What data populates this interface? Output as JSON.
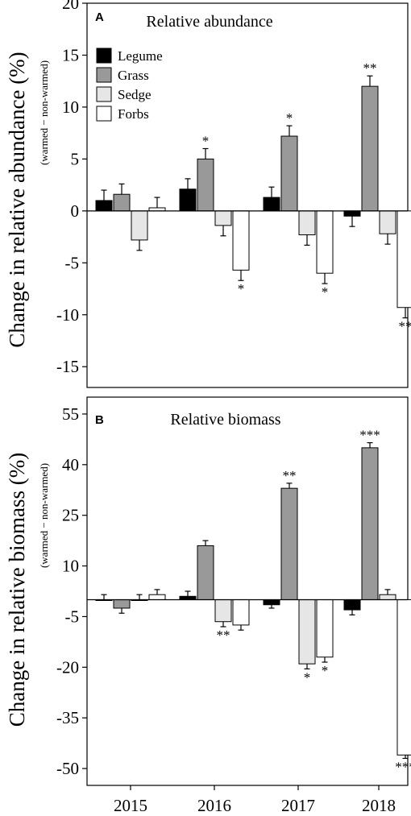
{
  "chart_data": [
    {
      "type": "bar",
      "panel_letter": "A",
      "title": "Relative abundance",
      "ylabel": "Change in relative abundance (%)",
      "ylabel_sub": "(warmed − non-warmed)",
      "xlabel": "",
      "categories": [
        "2015",
        "2016",
        "2017",
        "2018"
      ],
      "ylim": [
        -17,
        20
      ],
      "yticks": [
        20,
        15,
        10,
        5,
        0,
        -5,
        -10,
        -15
      ],
      "legend": "top-left",
      "grid": false,
      "series": [
        {
          "name": "Legume",
          "color": "#000000",
          "values": [
            1.0,
            2.1,
            1.3,
            -0.5
          ],
          "errors": [
            1.0,
            1.0,
            1.0,
            1.0
          ],
          "sig": [
            "",
            "",
            "",
            ""
          ]
        },
        {
          "name": "Grass",
          "color": "#999999",
          "values": [
            1.6,
            5.0,
            7.2,
            12.0
          ],
          "errors": [
            1.0,
            1.0,
            1.0,
            1.0
          ],
          "sig": [
            "",
            "*",
            "*",
            "**"
          ]
        },
        {
          "name": "Sedge",
          "color": "#e6e6e6",
          "values": [
            -2.8,
            -1.4,
            -2.3,
            -2.2
          ],
          "errors": [
            1.0,
            1.0,
            1.0,
            1.0
          ],
          "sig": [
            "",
            "",
            "",
            ""
          ]
        },
        {
          "name": "Forbs",
          "color": "#ffffff",
          "values": [
            0.3,
            -5.7,
            -6.0,
            -9.3
          ],
          "errors": [
            1.0,
            1.0,
            1.0,
            1.0
          ],
          "sig": [
            "",
            "*",
            "*",
            "**"
          ]
        }
      ]
    },
    {
      "type": "bar",
      "panel_letter": "B",
      "title": "Relative biomass",
      "ylabel": "Change in relative biomass (%)",
      "ylabel_sub": "(warmed − non-warmed)",
      "xlabel": "",
      "categories": [
        "2015",
        "2016",
        "2017",
        "2018"
      ],
      "ylim": [
        -55,
        60
      ],
      "yticks": [
        55,
        40,
        25,
        10,
        -5,
        -20,
        -35,
        -50
      ],
      "legend": "",
      "grid": false,
      "series": [
        {
          "name": "Legume",
          "color": "#000000",
          "values": [
            0,
            1,
            -1.5,
            -3
          ],
          "errors": [
            1.5,
            1.5,
            1.0,
            1.5
          ],
          "sig": [
            "",
            "",
            "",
            ""
          ]
        },
        {
          "name": "Grass",
          "color": "#999999",
          "values": [
            -2.5,
            16,
            33,
            45
          ],
          "errors": [
            1.5,
            1.5,
            1.5,
            1.5
          ],
          "sig": [
            "",
            "",
            "**",
            "***"
          ]
        },
        {
          "name": "Sedge",
          "color": "#e6e6e6",
          "values": [
            0,
            -6.5,
            -19,
            1.5
          ],
          "errors": [
            1.5,
            1.5,
            1.5,
            1.5
          ],
          "sig": [
            "",
            "**",
            "*",
            ""
          ]
        },
        {
          "name": "Forbs",
          "color": "#ffffff",
          "values": [
            1.5,
            -7.5,
            -17,
            -46
          ],
          "errors": [
            1.5,
            1.5,
            1.5,
            1.0
          ],
          "sig": [
            "",
            "",
            "*",
            "***"
          ]
        }
      ]
    }
  ]
}
